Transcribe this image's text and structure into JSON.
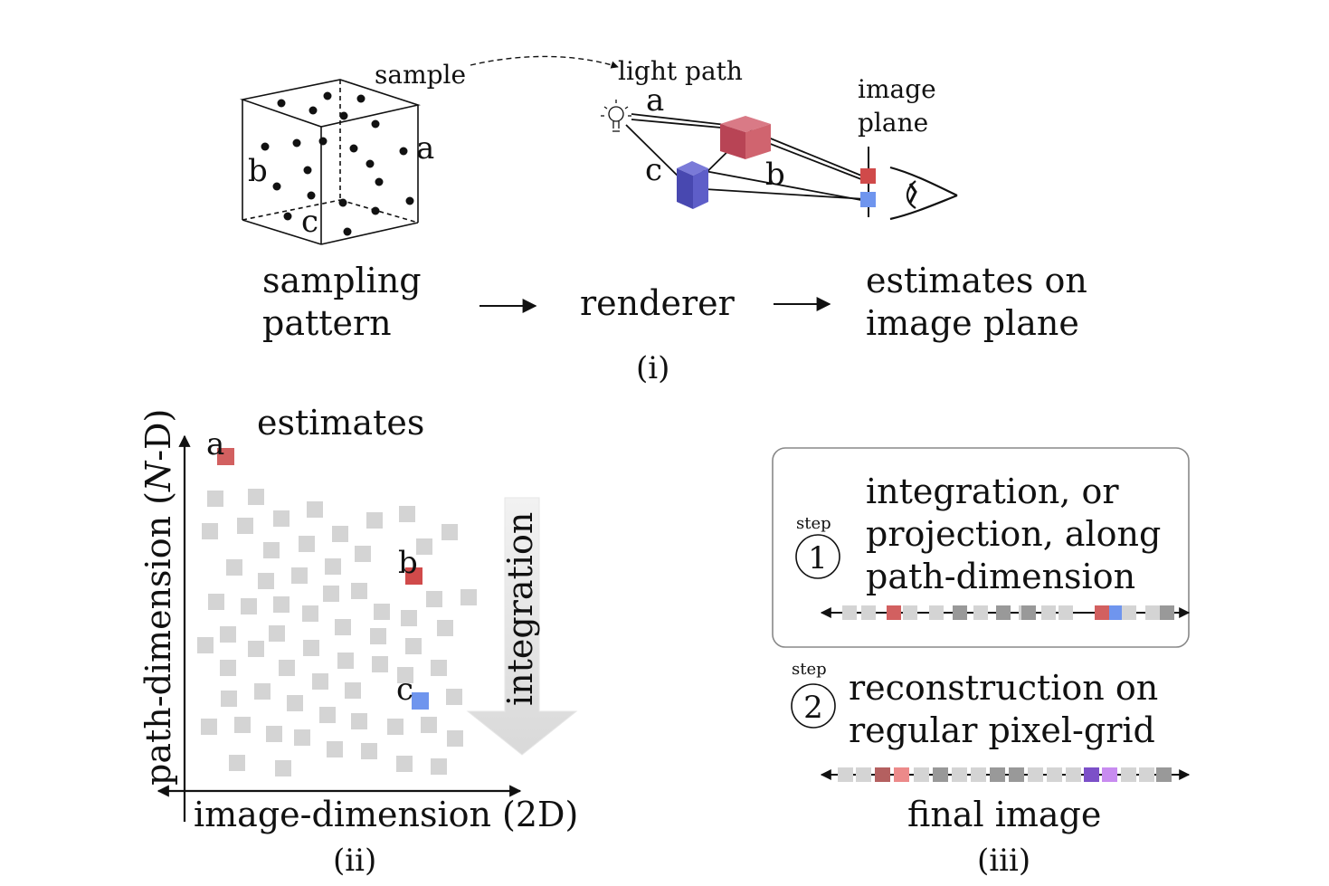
{
  "panel_i": {
    "sample_label": "sample",
    "light_path_label": "light path",
    "image_plane_line1": "image",
    "image_plane_line2": "plane",
    "point_a": "a",
    "point_b": "b",
    "point_c": "c",
    "sampling_line1": "sampling",
    "sampling_line2": "pattern",
    "renderer": "renderer",
    "estimates_line1": "estimates on",
    "estimates_line2": "image plane",
    "caption": "(i)"
  },
  "panel_ii": {
    "title": "estimates",
    "y_axis_label_pre": "path-dimension (",
    "y_axis_label_italic": "N",
    "y_axis_label_post": "-D)",
    "x_axis_label": "image-dimension (2D)",
    "arrow_label": "integration",
    "point_a": "a",
    "point_b": "b",
    "point_c": "c",
    "caption": "(ii)"
  },
  "panel_iii": {
    "step_word": "step",
    "step1_number": "1",
    "step1_line1": "integration, or",
    "step1_line2": "projection, along",
    "step1_line3": "path-dimension",
    "step2_number": "2",
    "step2_line1": "reconstruction on",
    "step2_line2": "regular pixel-grid",
    "final_label": "final image",
    "caption": "(iii)"
  },
  "colors": {
    "red": "#d26060",
    "blue": "#6f95ee",
    "gray": "#d4d4d4",
    "dark_gray": "#999999",
    "red_cube": "#c4505f",
    "blue_cube": "#5a5ac0",
    "purple": "#7c50c8",
    "light_purple": "#c88cf0",
    "pink": "#ec8a8a",
    "maroon": "#b46060"
  }
}
